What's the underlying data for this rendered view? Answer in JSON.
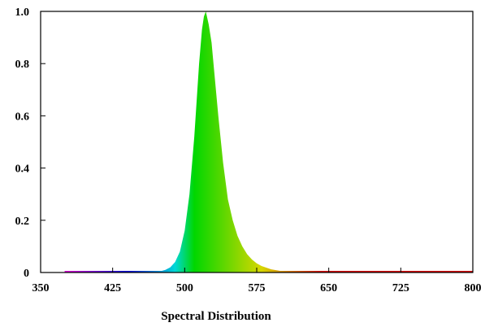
{
  "chart_data": {
    "type": "area",
    "title": "",
    "xlabel": "Spectral Distribution",
    "ylabel": "",
    "xlim": [
      350,
      800
    ],
    "ylim": [
      0,
      1.0
    ],
    "xticks": [
      350,
      425,
      500,
      575,
      650,
      725,
      800
    ],
    "xtick_labels": [
      "350",
      "425",
      "500",
      "575",
      "650",
      "725",
      "800"
    ],
    "yticks": [
      0,
      0.2,
      0.4,
      0.6,
      0.8,
      1.0
    ],
    "ytick_labels": [
      "0",
      "0.2",
      "0.4",
      "0.6",
      "0.8",
      "1.0"
    ],
    "grid": false,
    "fill": "wavelength-colored spectrum",
    "series": [
      {
        "x": [
          375,
          400,
          425,
          450,
          465,
          475,
          480,
          485,
          490,
          495,
          500,
          505,
          510,
          515,
          518,
          520,
          522,
          525,
          528,
          530,
          535,
          540,
          545,
          550,
          555,
          560,
          565,
          570,
          575,
          580,
          590,
          600,
          610,
          625,
          650,
          675,
          700,
          725,
          750,
          775,
          800
        ],
        "values": [
          0.0,
          0.0,
          0.0,
          0.0,
          0.002,
          0.005,
          0.01,
          0.02,
          0.04,
          0.08,
          0.16,
          0.3,
          0.52,
          0.8,
          0.93,
          0.98,
          1.0,
          0.95,
          0.88,
          0.8,
          0.6,
          0.42,
          0.28,
          0.2,
          0.14,
          0.1,
          0.07,
          0.05,
          0.035,
          0.025,
          0.012,
          0.006,
          0.003,
          0.001,
          0.0,
          0.0,
          0.0,
          0.0,
          0.0,
          0.0,
          0.0
        ]
      }
    ]
  }
}
